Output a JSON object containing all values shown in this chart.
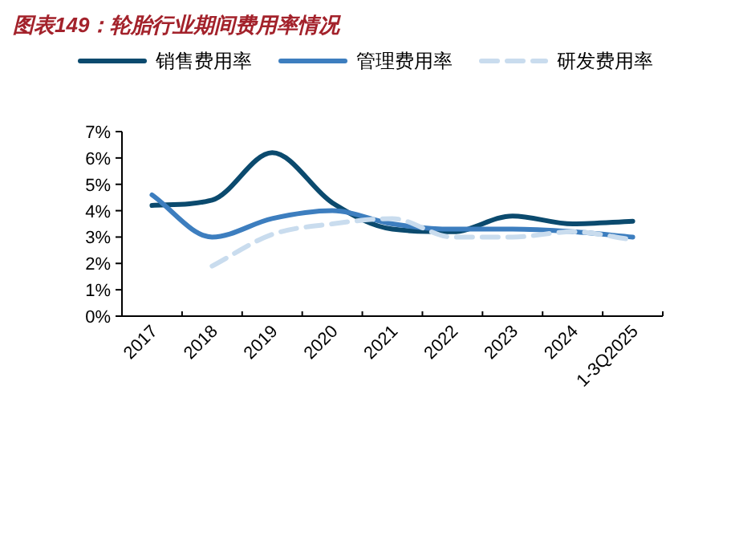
{
  "chart_data": {
    "type": "line",
    "title": "图表149：轮胎行业期间费用率情况",
    "categories": [
      "2017",
      "2018",
      "2019",
      "2020",
      "2021",
      "2022",
      "2023",
      "2024",
      "1-3Q2025"
    ],
    "series": [
      {
        "name": "销售费用率",
        "color": "#0b4a6e",
        "values": [
          4.2,
          4.4,
          6.2,
          4.3,
          3.3,
          3.2,
          3.8,
          3.5,
          3.6
        ]
      },
      {
        "name": "管理费用率",
        "color": "#3d7ebf",
        "values": [
          4.6,
          3.0,
          3.7,
          4.0,
          3.5,
          3.3,
          3.3,
          3.2,
          3.0
        ]
      },
      {
        "name": "研发费用率",
        "color": "#c9dcee",
        "line_style": "dashed",
        "values": [
          null,
          1.9,
          3.1,
          3.5,
          3.7,
          3.0,
          3.0,
          3.2,
          2.9
        ]
      }
    ],
    "ylim": [
      0,
      7
    ],
    "yticks": [
      {
        "value": 0,
        "label": "0%"
      },
      {
        "value": 1,
        "label": "1%"
      },
      {
        "value": 2,
        "label": "2%"
      },
      {
        "value": 3,
        "label": "3%"
      },
      {
        "value": 4,
        "label": "4%"
      },
      {
        "value": 5,
        "label": "5%"
      },
      {
        "value": 6,
        "label": "6%"
      },
      {
        "value": 7,
        "label": "7%"
      }
    ],
    "legend": "top",
    "grid": false
  }
}
